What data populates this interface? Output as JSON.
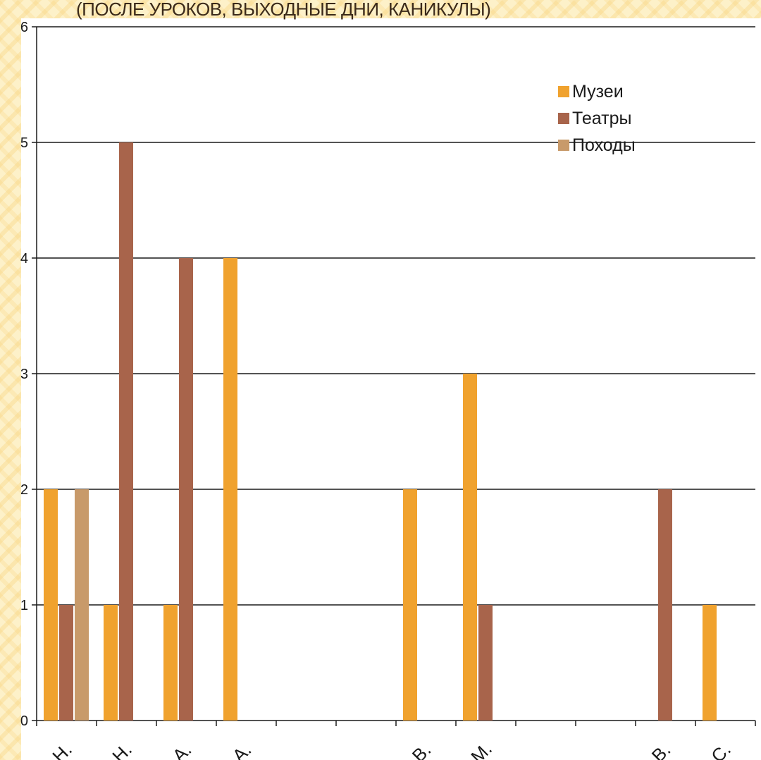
{
  "title": "(ПОСЛЕ УРОКОВ, ВЫХОДНЫЕ ДНИ, КАНИКУЛЫ)",
  "chart_data": {
    "type": "bar",
    "ylim": [
      0,
      6
    ],
    "yticks": [
      "0",
      "1",
      "2",
      "3",
      "4",
      "5",
      "6"
    ],
    "grid": true,
    "legend_position": "top-right",
    "categories": [
      "Н.",
      "Н.",
      "А.",
      "А.",
      "",
      "",
      "В.",
      "М.",
      "",
      "",
      "В.",
      "С."
    ],
    "series": [
      {
        "name": "Музеи",
        "color": "#f0a22e",
        "values": [
          2,
          1,
          1,
          4,
          0,
          0,
          2,
          3,
          0,
          0,
          0,
          1
        ]
      },
      {
        "name": "Театры",
        "color": "#a8644b",
        "values": [
          1,
          5,
          4,
          0,
          0,
          0,
          0,
          1,
          0,
          0,
          2,
          0
        ]
      },
      {
        "name": "Походы",
        "color": "#c89a6a",
        "values": [
          2,
          0,
          0,
          0,
          0,
          0,
          0,
          0,
          0,
          0,
          0,
          0
        ]
      }
    ]
  }
}
